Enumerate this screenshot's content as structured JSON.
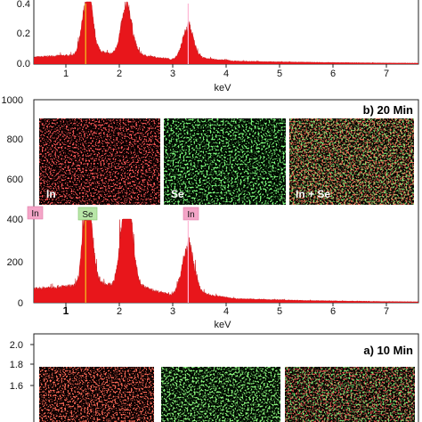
{
  "colors": {
    "spectrum": "#e8161b",
    "in_map": "#ff2a2a",
    "se_map": "#3ddc3d",
    "in_tag": "#f4a6c8",
    "se_tag": "#b9e6a8",
    "se_marker": "#f2c81e",
    "in_marker": "#ffb7d5"
  },
  "chart_data": [
    {
      "panel": "top",
      "type": "area",
      "xlabel": "keV",
      "xticks": [
        "1",
        "2",
        "3",
        "4",
        "5",
        "6",
        "7"
      ],
      "yticks": [
        "0.0",
        "0.2",
        "0.4"
      ],
      "xlim": [
        0.4,
        7.6
      ],
      "ylim": [
        0,
        0.56
      ],
      "peaks": [
        {
          "x": 1.4,
          "y": 0.55,
          "width": 0.09
        },
        {
          "x": 2.13,
          "y": 0.44,
          "width": 0.1
        },
        {
          "x": 3.28,
          "y": 0.29,
          "width": 0.1
        }
      ],
      "background": {
        "level": 0.07,
        "decay": 0.35
      },
      "markers": [
        {
          "x": 1.37
        },
        {
          "x": 3.29
        }
      ]
    },
    {
      "panel": "middle",
      "type": "area",
      "title": "b) 20 Min",
      "xlabel": "keV",
      "xticks": [
        "1",
        "2",
        "3",
        "4",
        "5",
        "6",
        "7"
      ],
      "yticks": [
        "0",
        "200",
        "400",
        "600",
        "800",
        "1000"
      ],
      "xlim": [
        0.4,
        7.6
      ],
      "ylim": [
        0,
        1000
      ],
      "peaks": [
        {
          "x": 1.4,
          "y": 460,
          "width": 0.08
        },
        {
          "x": 2.13,
          "y": 480,
          "width": 0.1
        },
        {
          "x": 3.28,
          "y": 230,
          "width": 0.11
        }
      ],
      "background": {
        "level": 65,
        "decay": 0.45
      },
      "markers": [
        {
          "x": 1.37,
          "label": "Se"
        },
        {
          "x": 3.29,
          "label": "In"
        }
      ],
      "edge_tag": "In",
      "maps": [
        "In",
        "Se",
        "In + Se"
      ]
    },
    {
      "panel": "bottom",
      "type": "area",
      "title": "a) 10 Min",
      "yticks": [
        "1.6",
        "1.8",
        "2.0"
      ],
      "ylim": [
        1.38,
        2.05
      ],
      "maps": [
        "",
        "",
        ""
      ]
    }
  ]
}
